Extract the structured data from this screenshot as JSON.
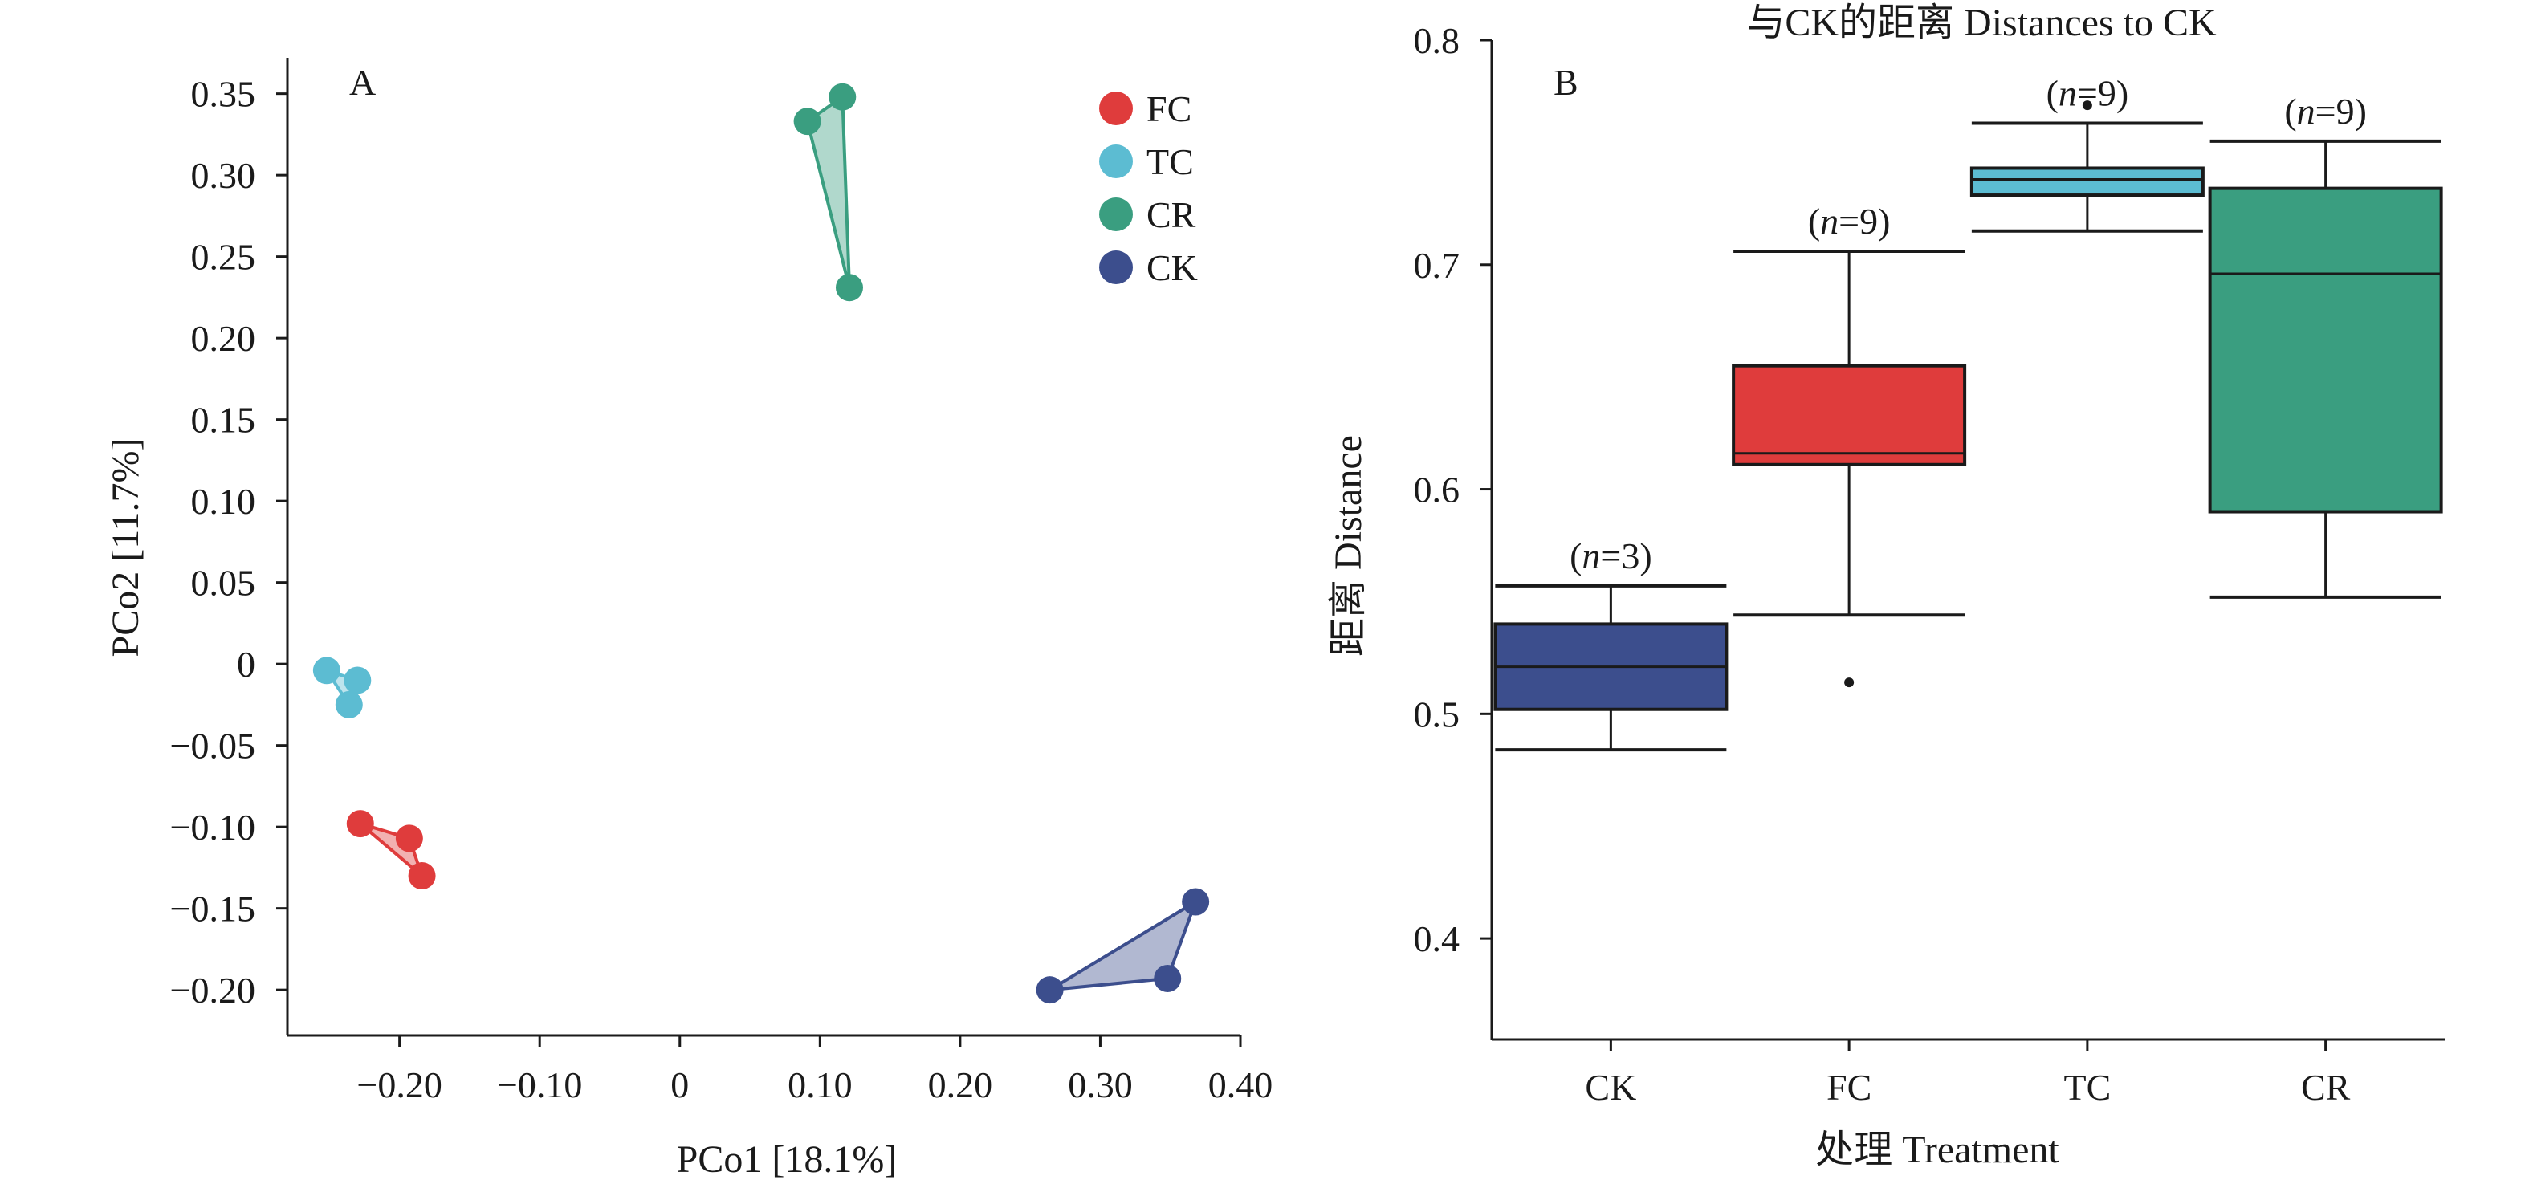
{
  "chart_data": [
    {
      "type": "scatter",
      "panel_label": "A",
      "xlabel": "PCo1 [18.1%]",
      "ylabel": "PCo2 [11.7%]",
      "xlim": [
        -0.28,
        0.4
      ],
      "ylim": [
        -0.228,
        0.372
      ],
      "x_ticks": [
        -0.2,
        -0.1,
        0,
        0.1,
        0.2,
        0.3,
        0.4
      ],
      "x_tick_labels": [
        "−0.20",
        "−0.10",
        "0",
        "0.10",
        "0.20",
        "0.30",
        "0.40"
      ],
      "y_ticks": [
        0.35,
        0.3,
        0.25,
        0.2,
        0.15,
        0.1,
        0.05,
        0,
        -0.05,
        -0.1,
        -0.15,
        -0.2
      ],
      "y_tick_labels": [
        "0.35",
        "0.30",
        "0.25",
        "0.20",
        "0.15",
        "0.10",
        "0.05",
        "0",
        "−0.05",
        "−0.10",
        "−0.15",
        "−0.20"
      ],
      "legend_position": "top-right",
      "series": [
        {
          "name": "FC",
          "color": "#df3c3c",
          "points": [
            [
              -0.228,
              -0.098
            ],
            [
              -0.193,
              -0.107
            ],
            [
              -0.184,
              -0.13
            ]
          ]
        },
        {
          "name": "TC",
          "color": "#5cbcd2",
          "points": [
            [
              -0.252,
              -0.004
            ],
            [
              -0.23,
              -0.01
            ],
            [
              -0.236,
              -0.025
            ]
          ]
        },
        {
          "name": "CR",
          "color": "#3a9e80",
          "points": [
            [
              0.091,
              0.333
            ],
            [
              0.116,
              0.348
            ],
            [
              0.121,
              0.231
            ]
          ]
        },
        {
          "name": "CK",
          "color": "#3c4e8d",
          "points": [
            [
              0.264,
              -0.2
            ],
            [
              0.348,
              -0.193
            ],
            [
              0.368,
              -0.146
            ]
          ]
        }
      ]
    },
    {
      "type": "box",
      "panel_label": "B",
      "title": "与CK的距离 Distances to CK",
      "xlabel": "处理 Treatment",
      "ylabel": "距离 Distance",
      "ylim": [
        0.355,
        0.8
      ],
      "y_ticks": [
        0.4,
        0.5,
        0.6,
        0.7,
        0.8
      ],
      "y_tick_labels": [
        "0.4",
        "0.5",
        "0.6",
        "0.7",
        "0.8"
      ],
      "categories": [
        "CK",
        "FC",
        "TC",
        "CR"
      ],
      "boxes": [
        {
          "category": "CK",
          "n_italic": "n",
          "n_value": "=3",
          "color": "#3c4e8d",
          "whisker_low": 0.484,
          "q1": 0.502,
          "median": 0.521,
          "q3": 0.54,
          "whisker_high": 0.557,
          "outliers": []
        },
        {
          "category": "FC",
          "n_italic": "n",
          "n_value": "=9",
          "color": "#df3c3c",
          "whisker_low": 0.544,
          "q1": 0.611,
          "median": 0.616,
          "q3": 0.655,
          "whisker_high": 0.706,
          "outliers": [
            0.514
          ]
        },
        {
          "category": "TC",
          "n_italic": "n",
          "n_value": "=9",
          "color": "#5cbcd2",
          "whisker_low": 0.715,
          "q1": 0.731,
          "median": 0.738,
          "q3": 0.743,
          "whisker_high": 0.763,
          "outliers": [
            0.771
          ]
        },
        {
          "category": "CR",
          "n_italic": "n",
          "n_value": "=9",
          "color": "#3a9e80",
          "whisker_low": 0.552,
          "q1": 0.59,
          "median": 0.696,
          "q3": 0.734,
          "whisker_high": 0.755,
          "outliers": []
        }
      ]
    }
  ]
}
